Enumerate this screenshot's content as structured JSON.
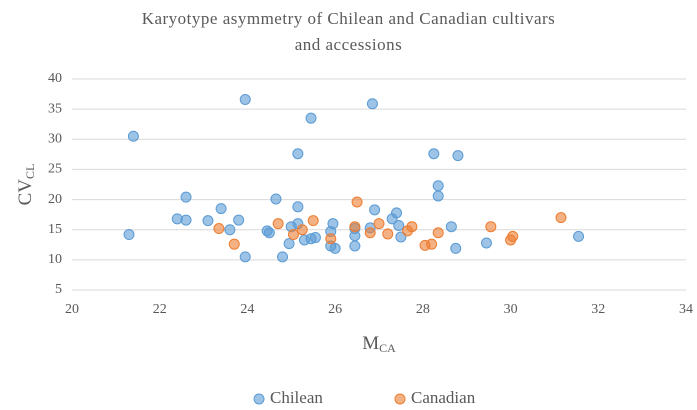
{
  "chart_data": {
    "type": "scatter",
    "title": "Karyotype asymmetry of Chilean and Canadian cultivars and accessions",
    "xlabel": {
      "main": "M",
      "sub": "CA"
    },
    "ylabel": {
      "main": "CV",
      "sub": "CL"
    },
    "xlim": [
      20,
      34
    ],
    "xticks": [
      20,
      22,
      24,
      26,
      28,
      30,
      32,
      34
    ],
    "ylim": [
      5,
      40
    ],
    "yticks": [
      5,
      10,
      15,
      20,
      25,
      30,
      35,
      40
    ],
    "grid": true,
    "legend": "bottom",
    "series": [
      {
        "name": "Chilean",
        "color": "#5b9bd5",
        "x": [
          21.4,
          21.3,
          22.4,
          22.6,
          22.6,
          23.1,
          23.4,
          23.6,
          23.8,
          23.95,
          23.95,
          24.45,
          24.5,
          24.65,
          24.8,
          24.95,
          25.0,
          25.15,
          25.15,
          25.15,
          25.3,
          25.45,
          25.45,
          25.55,
          25.9,
          25.9,
          25.95,
          26.0,
          26.45,
          26.45,
          26.45,
          26.85,
          26.8,
          26.9,
          27.3,
          27.4,
          27.45,
          27.5,
          28.25,
          28.35,
          28.35,
          28.65,
          28.75,
          28.8,
          29.45,
          31.55
        ],
        "values": [
          30.5,
          14.2,
          16.8,
          20.4,
          16.6,
          16.5,
          18.5,
          15.0,
          16.6,
          36.6,
          10.5,
          14.8,
          14.5,
          20.1,
          10.5,
          12.7,
          15.5,
          27.6,
          18.8,
          16.0,
          13.3,
          33.5,
          13.5,
          13.7,
          14.7,
          12.3,
          16.0,
          11.9,
          14.0,
          12.3,
          15.2,
          35.9,
          15.3,
          18.3,
          16.8,
          17.8,
          15.7,
          13.8,
          27.6,
          22.3,
          20.6,
          15.5,
          11.9,
          27.3,
          12.8,
          13.9
        ]
      },
      {
        "name": "Canadian",
        "color": "#ed7d31",
        "x": [
          23.35,
          23.7,
          24.7,
          25.05,
          25.25,
          25.5,
          25.9,
          26.45,
          26.5,
          26.8,
          27.0,
          27.2,
          27.65,
          27.75,
          28.05,
          28.2,
          28.35,
          29.55,
          30.0,
          30.05,
          31.15
        ],
        "values": [
          15.2,
          12.6,
          16.0,
          14.2,
          15.0,
          16.5,
          13.5,
          15.5,
          19.6,
          14.5,
          16.0,
          14.3,
          14.8,
          15.5,
          12.4,
          12.6,
          14.5,
          15.5,
          13.3,
          13.9,
          17.0
        ]
      }
    ]
  }
}
